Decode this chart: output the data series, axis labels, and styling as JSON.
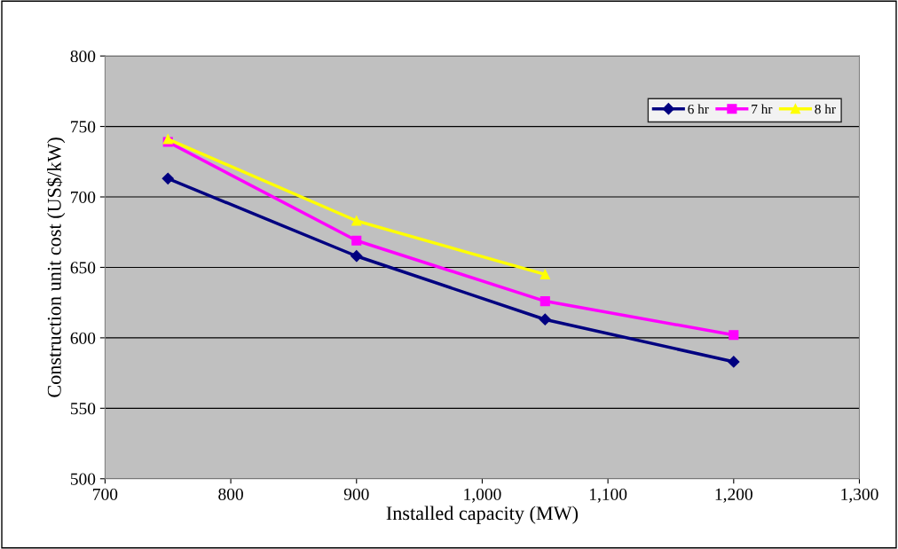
{
  "chart_data": {
    "type": "line",
    "xlabel": "Installed capacity (MW)",
    "ylabel": "Construction unit cost (US$/kW)",
    "series": [
      {
        "name": "6 hr",
        "color": "#000080",
        "marker": "diamond",
        "x": [
          750,
          900,
          1050,
          1200
        ],
        "values": [
          713,
          658,
          613,
          583
        ]
      },
      {
        "name": "7 hr",
        "color": "#ff00ff",
        "marker": "square",
        "x": [
          750,
          900,
          1050,
          1200
        ],
        "values": [
          739,
          669,
          626,
          602
        ]
      },
      {
        "name": "8 hr",
        "color": "#ffff00",
        "marker": "triangle",
        "x": [
          750,
          900,
          1050
        ],
        "values": [
          741,
          683,
          645
        ]
      }
    ],
    "xlim": [
      700,
      1300
    ],
    "xticks": [
      700,
      800,
      900,
      {
        "value": 1000,
        "label": "1,000"
      },
      {
        "value": 1100,
        "label": "1,100"
      },
      {
        "value": 1200,
        "label": "1,200"
      },
      {
        "value": 1300,
        "label": "1,300"
      }
    ],
    "ylim": [
      500,
      800
    ],
    "yticks": [
      500,
      550,
      600,
      650,
      700,
      750,
      800
    ],
    "grid": "y",
    "legend": "top right"
  }
}
